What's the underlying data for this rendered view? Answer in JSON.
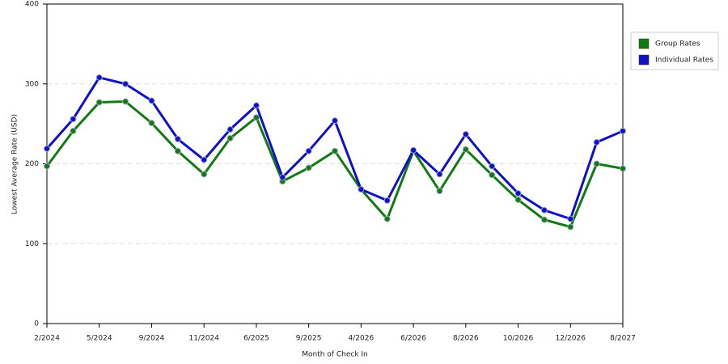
{
  "chart_data": {
    "type": "line",
    "x_label": "Month of Check In",
    "y_label": "Lowest Average Rate (USD)",
    "categories": [
      "2/2024",
      null,
      "5/2024",
      null,
      "9/2024",
      null,
      "11/2024",
      null,
      "6/2025",
      null,
      "9/2025",
      null,
      "4/2026",
      null,
      "6/2026",
      null,
      "8/2026",
      null,
      "10/2026",
      null,
      "12/2026",
      null,
      "8/2027"
    ],
    "series": [
      {
        "name": "Group Rates",
        "color": "#137a13",
        "values": [
          197,
          241,
          277,
          278,
          251,
          216,
          187,
          232,
          258,
          178,
          195,
          216,
          168,
          131,
          216,
          166,
          218,
          186,
          155,
          130,
          121,
          200,
          194
        ]
      },
      {
        "name": "Individual Rates",
        "color": "#1010c8",
        "values": [
          219,
          256,
          308,
          300,
          279,
          231,
          205,
          243,
          273,
          183,
          216,
          254,
          168,
          154,
          217,
          187,
          237,
          197,
          163,
          142,
          131,
          227,
          241
        ]
      }
    ],
    "ylim": [
      0,
      400
    ],
    "yticks": [
      0,
      100,
      200,
      300,
      400
    ],
    "grid": true,
    "legend": "right"
  }
}
